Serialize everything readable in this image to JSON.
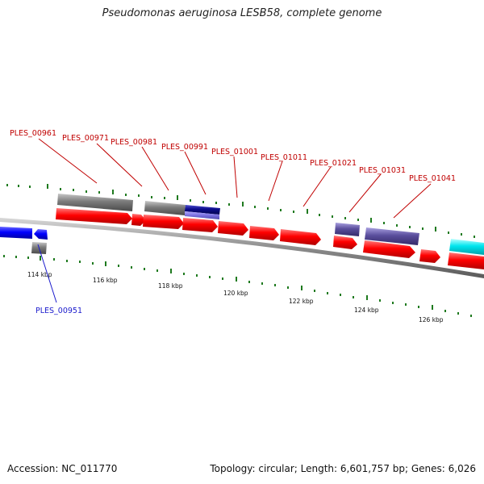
{
  "title": "Pseudomonas aeruginosa LESB58, complete genome",
  "accession": "Accession: NC_011770",
  "summary": "Topology: circular; Length: 6,601,757 bp; Genes: 6,026",
  "scale_labels": [
    "114 kbp",
    "116 kbp",
    "118 kbp",
    "120 kbp",
    "122 kbp",
    "124 kbp",
    "126 kbp"
  ],
  "gene_labels": [
    "PLES_00951",
    "PLES_00961",
    "PLES_00971",
    "PLES_00981",
    "PLES_00991",
    "PLES_01001",
    "PLES_01011",
    "PLES_01021",
    "PLES_01031",
    "PLES_01041"
  ],
  "colors": {
    "forward_cds": "#ff0000",
    "reverse_cds": "#0000ff",
    "grey_feature": "#808080",
    "navy_feature": "#0b0b8a",
    "slate_feature": "#5a4e9c",
    "cyan_feature": "#00e5ee",
    "tick": "#1f7a1f",
    "backbone": "#8c8c8c",
    "label_forward": "#c00000",
    "label_reverse": "#1a1acc"
  }
}
